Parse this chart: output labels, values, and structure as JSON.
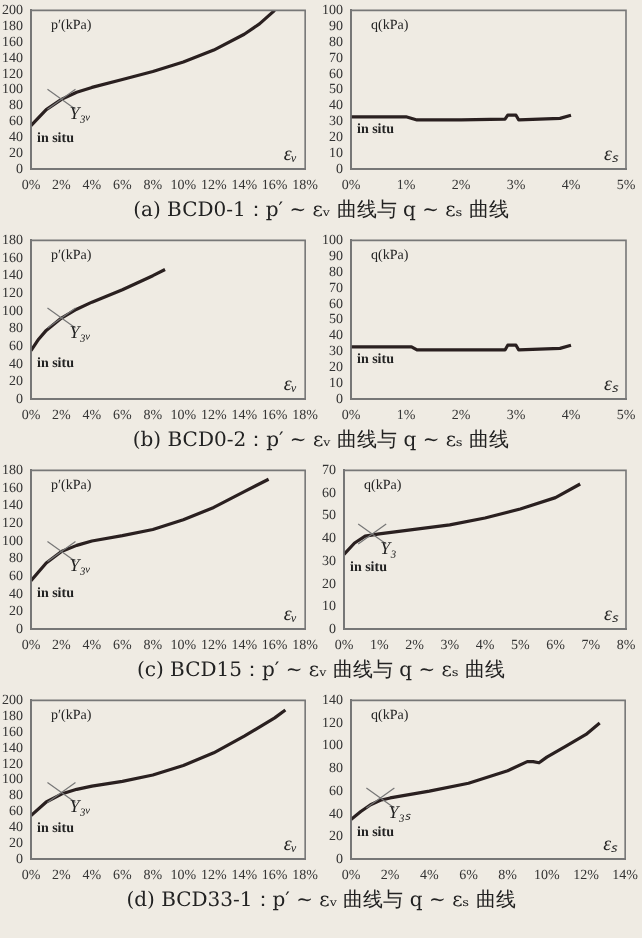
{
  "chart_data": [
    {
      "type": "line",
      "ylabel": "p′(kPa)",
      "xlabel": "εᵥ",
      "color": "#2a2020",
      "x": [
        0,
        1,
        2,
        3,
        4,
        6,
        8,
        10,
        12,
        14,
        15,
        16
      ],
      "values": [
        55,
        75,
        88,
        97,
        103,
        113,
        123,
        135,
        150,
        170,
        183,
        200
      ],
      "xlim": [
        0,
        18
      ],
      "xticks": [
        {
          "value": 0,
          "label": "0%"
        },
        {
          "value": 2,
          "label": "2%"
        },
        {
          "value": 4,
          "label": "4%"
        },
        {
          "value": 6,
          "label": "6%"
        },
        {
          "value": 8,
          "label": "8%"
        },
        {
          "value": 10,
          "label": "10%"
        },
        {
          "value": 12,
          "label": "12%"
        },
        {
          "value": 14,
          "label": "14%"
        },
        {
          "value": 16,
          "label": "16%"
        },
        {
          "value": 18,
          "label": "18%"
        }
      ],
      "ylim": [
        0,
        200
      ],
      "yticks": [
        0,
        20,
        40,
        60,
        80,
        100,
        120,
        140,
        160,
        180,
        200
      ],
      "annotations": [
        {
          "text": "in situ",
          "x": 0,
          "y": 55
        },
        {
          "text": "Y₃ᵥ",
          "x": 2,
          "y": 88
        },
        "(a) BCD0-1：p′ ~ εᵥ 曲线与 q ~ εₛ 曲线"
      ]
    },
    {
      "type": "line",
      "ylabel": "q(kPa)",
      "xlabel": "εₛ",
      "color": "#2a2020",
      "x": [
        0,
        1,
        1.2,
        2,
        2.8,
        2.85,
        3,
        3.05,
        3.8,
        4
      ],
      "values": [
        33,
        33,
        31,
        31,
        31.5,
        34,
        34,
        31,
        32,
        34
      ],
      "xlim": [
        0,
        5
      ],
      "xticks": [
        {
          "value": 0,
          "label": "0%"
        },
        {
          "value": 1,
          "label": "1%"
        },
        {
          "value": 2,
          "label": "2%"
        },
        {
          "value": 3,
          "label": "3%"
        },
        {
          "value": 4,
          "label": "4%"
        },
        {
          "value": 5,
          "label": "5%"
        }
      ],
      "ylim": [
        0,
        100
      ],
      "yticks": [
        0,
        10,
        20,
        30,
        40,
        50,
        60,
        70,
        80,
        90,
        100
      ],
      "annotations": [
        {
          "text": "in situ",
          "x": 0,
          "y": 33
        }
      ]
    },
    {
      "type": "line",
      "ylabel": "p′(kPa)",
      "xlabel": "εᵥ",
      "color": "#2a2020",
      "x": [
        0,
        0.5,
        1,
        2,
        3,
        4,
        5,
        6,
        7,
        8,
        8.8
      ],
      "values": [
        55,
        68,
        78,
        92,
        102,
        110,
        117,
        124,
        132,
        140,
        147
      ],
      "xlim": [
        0,
        18
      ],
      "xticks": [
        {
          "value": 0,
          "label": "0%"
        },
        {
          "value": 2,
          "label": "2%"
        },
        {
          "value": 4,
          "label": "4%"
        },
        {
          "value": 6,
          "label": "6%"
        },
        {
          "value": 8,
          "label": "8%"
        },
        {
          "value": 10,
          "label": "10%"
        },
        {
          "value": 12,
          "label": "12%"
        },
        {
          "value": 14,
          "label": "14%"
        },
        {
          "value": 16,
          "label": "16%"
        },
        {
          "value": 18,
          "label": "18%"
        }
      ],
      "ylim": [
        0,
        180
      ],
      "yticks": [
        0,
        20,
        40,
        60,
        80,
        100,
        120,
        140,
        160,
        180
      ],
      "annotations": [
        {
          "text": "in situ",
          "x": 0,
          "y": 55
        },
        {
          "text": "Y₃ᵥ",
          "x": 2,
          "y": 92
        },
        "(b) BCD0-2：p′ ~ εᵥ 曲线与 q ~ εₛ 曲线"
      ]
    },
    {
      "type": "line",
      "ylabel": "q(kPa)",
      "xlabel": "εₛ",
      "color": "#2a2020",
      "x": [
        0,
        1.1,
        1.2,
        2.8,
        2.85,
        3,
        3.05,
        3.8,
        4
      ],
      "values": [
        33,
        33,
        31,
        31,
        34,
        34,
        31,
        32,
        34
      ],
      "xlim": [
        0,
        5
      ],
      "xticks": [
        {
          "value": 0,
          "label": "0%"
        },
        {
          "value": 1,
          "label": "1%"
        },
        {
          "value": 2,
          "label": "2%"
        },
        {
          "value": 3,
          "label": "3%"
        },
        {
          "value": 4,
          "label": "4%"
        },
        {
          "value": 5,
          "label": "5%"
        }
      ],
      "ylim": [
        0,
        100
      ],
      "yticks": [
        0,
        10,
        20,
        30,
        40,
        50,
        60,
        70,
        80,
        90,
        100
      ],
      "annotations": [
        {
          "text": "in situ",
          "x": 0,
          "y": 33
        }
      ]
    },
    {
      "type": "line",
      "ylabel": "p′(kPa)",
      "xlabel": "εᵥ",
      "color": "#2a2020",
      "x": [
        0,
        1,
        2,
        3,
        4,
        6,
        8,
        10,
        12,
        14,
        15.6
      ],
      "values": [
        55,
        75,
        88,
        95,
        100,
        106,
        113,
        124,
        138,
        156,
        170
      ],
      "xlim": [
        0,
        18
      ],
      "xticks": [
        {
          "value": 0,
          "label": "0%"
        },
        {
          "value": 2,
          "label": "2%"
        },
        {
          "value": 4,
          "label": "4%"
        },
        {
          "value": 6,
          "label": "6%"
        },
        {
          "value": 8,
          "label": "8%"
        },
        {
          "value": 10,
          "label": "10%"
        },
        {
          "value": 12,
          "label": "12%"
        },
        {
          "value": 14,
          "label": "14%"
        },
        {
          "value": 16,
          "label": "16%"
        },
        {
          "value": 18,
          "label": "18%"
        }
      ],
      "ylim": [
        0,
        180
      ],
      "yticks": [
        0,
        20,
        40,
        60,
        80,
        100,
        120,
        140,
        160,
        180
      ],
      "annotations": [
        {
          "text": "in situ",
          "x": 0,
          "y": 55
        },
        {
          "text": "Y₃ᵥ",
          "x": 2,
          "y": 88
        },
        "(c) BCD15：p′ ~ εᵥ 曲线与 q ~ εₛ 曲线"
      ]
    },
    {
      "type": "line",
      "ylabel": "q(kPa)",
      "xlabel": "εₛ",
      "color": "#2a2020",
      "x": [
        0,
        0.3,
        0.6,
        1,
        1.5,
        2,
        3,
        4,
        5,
        6,
        6.7
      ],
      "values": [
        33,
        38,
        41,
        42,
        43,
        44,
        46,
        49,
        53,
        58,
        64
      ],
      "xlim": [
        0,
        8
      ],
      "xticks": [
        {
          "value": 0,
          "label": "0%"
        },
        {
          "value": 1,
          "label": "1%"
        },
        {
          "value": 2,
          "label": "2%"
        },
        {
          "value": 3,
          "label": "3%"
        },
        {
          "value": 4,
          "label": "4%"
        },
        {
          "value": 5,
          "label": "5%"
        },
        {
          "value": 6,
          "label": "6%"
        },
        {
          "value": 7,
          "label": "7%"
        },
        {
          "value": 8,
          "label": "8%"
        }
      ],
      "ylim": [
        0,
        70
      ],
      "yticks": [
        0,
        10,
        20,
        30,
        40,
        50,
        60,
        70
      ],
      "annotations": [
        {
          "text": "in situ",
          "x": 0,
          "y": 33
        },
        {
          "text": "Y₃",
          "x": 0.8,
          "y": 42
        }
      ]
    },
    {
      "type": "line",
      "ylabel": "p′(kPa)",
      "xlabel": "εᵥ",
      "color": "#2a2020",
      "x": [
        0,
        1,
        2,
        3,
        4,
        6,
        8,
        10,
        12,
        14,
        16,
        16.7
      ],
      "values": [
        55,
        72,
        82,
        88,
        92,
        98,
        106,
        118,
        134,
        155,
        178,
        188
      ],
      "xlim": [
        0,
        18
      ],
      "xticks": [
        {
          "value": 0,
          "label": "0%"
        },
        {
          "value": 2,
          "label": "2%"
        },
        {
          "value": 4,
          "label": "4%"
        },
        {
          "value": 6,
          "label": "6%"
        },
        {
          "value": 8,
          "label": "8%"
        },
        {
          "value": 10,
          "label": "10%"
        },
        {
          "value": 12,
          "label": "12%"
        },
        {
          "value": 14,
          "label": "14%"
        },
        {
          "value": 16,
          "label": "16%"
        },
        {
          "value": 18,
          "label": "18%"
        }
      ],
      "ylim": [
        0,
        200
      ],
      "yticks": [
        0,
        20,
        40,
        60,
        80,
        100,
        120,
        140,
        160,
        180,
        200
      ],
      "annotations": [
        {
          "text": "in situ",
          "x": 0,
          "y": 55
        },
        {
          "text": "Y₃ᵥ",
          "x": 2,
          "y": 84
        },
        "(d) BCD33-1：p′ ~ εᵥ 曲线与 q ~ εₛ 曲线"
      ]
    },
    {
      "type": "line",
      "ylabel": "q(kPa)",
      "xlabel": "εₛ",
      "color": "#2a2020",
      "x": [
        0,
        0.5,
        1,
        1.5,
        2,
        4,
        6,
        8,
        9,
        9.3,
        9.6,
        10,
        11,
        12,
        12.7
      ],
      "values": [
        35,
        42,
        48,
        52,
        54,
        60,
        67,
        78,
        86,
        86,
        85,
        90,
        100,
        110,
        120
      ],
      "xlim": [
        0,
        14
      ],
      "xticks": [
        {
          "value": 0,
          "label": "0%"
        },
        {
          "value": 2,
          "label": "2%"
        },
        {
          "value": 4,
          "label": "4%"
        },
        {
          "value": 6,
          "label": "6%"
        },
        {
          "value": 8,
          "label": "8%"
        },
        {
          "value": 10,
          "label": "10%"
        },
        {
          "value": 12,
          "label": "12%"
        },
        {
          "value": 14,
          "label": "14%"
        }
      ],
      "ylim": [
        0,
        140
      ],
      "yticks": [
        0,
        20,
        40,
        60,
        80,
        100,
        120,
        140
      ],
      "annotations": [
        {
          "text": "in situ",
          "x": 0,
          "y": 35
        },
        {
          "text": "Y₃ₛ",
          "x": 1.5,
          "y": 54
        }
      ]
    }
  ]
}
